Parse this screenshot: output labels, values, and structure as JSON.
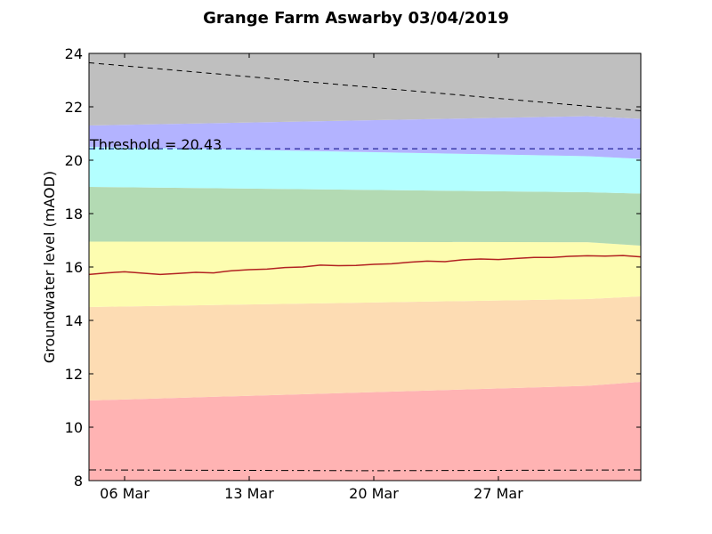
{
  "chart_data": {
    "type": "area",
    "title": "Grange Farm Aswarby 03/04/2019",
    "xlabel": "",
    "ylabel": "Groundwater level (mAOD)",
    "ylim": [
      8,
      24
    ],
    "xlim": [
      "2019-03-04",
      "2019-04-04"
    ],
    "yticks": [
      8,
      10,
      12,
      14,
      16,
      18,
      20,
      22,
      24
    ],
    "xticks": [
      {
        "date": "2019-03-06",
        "label": "06 Mar"
      },
      {
        "date": "2019-03-13",
        "label": "13 Mar"
      },
      {
        "date": "2019-03-20",
        "label": "20 Mar"
      },
      {
        "date": "2019-03-27",
        "label": "27 Mar"
      }
    ],
    "grid": false,
    "bands": [
      {
        "color": "#ffb3b3",
        "x": [
          "2019-03-04",
          "2019-04-01",
          "2019-04-04"
        ],
        "lower": [
          8,
          8,
          8
        ],
        "upper": [
          11.0,
          11.55,
          11.7
        ]
      },
      {
        "color": "#fddcb3",
        "x": [
          "2019-03-04",
          "2019-04-01",
          "2019-04-04"
        ],
        "lower": [
          11.0,
          11.55,
          11.7
        ],
        "upper": [
          14.5,
          14.8,
          14.9
        ]
      },
      {
        "color": "#fdfdb0",
        "x": [
          "2019-03-04",
          "2019-04-01",
          "2019-04-04"
        ],
        "lower": [
          14.5,
          14.8,
          14.9
        ],
        "upper": [
          16.95,
          16.93,
          16.8
        ]
      },
      {
        "color": "#b3dab3",
        "x": [
          "2019-03-04",
          "2019-04-01",
          "2019-04-04"
        ],
        "lower": [
          16.95,
          16.93,
          16.8
        ],
        "upper": [
          19.0,
          18.8,
          18.75
        ]
      },
      {
        "color": "#b3ffff",
        "x": [
          "2019-03-04",
          "2019-04-01",
          "2019-04-04"
        ],
        "lower": [
          19.0,
          18.8,
          18.75
        ],
        "upper": [
          20.5,
          20.15,
          20.05
        ]
      },
      {
        "color": "#b3b3ff",
        "x": [
          "2019-03-04",
          "2019-04-01",
          "2019-04-04"
        ],
        "lower": [
          20.5,
          20.15,
          20.05
        ],
        "upper": [
          21.3,
          21.65,
          21.55
        ]
      },
      {
        "color": "#bfbfbf",
        "x": [
          "2019-03-04",
          "2019-04-01",
          "2019-04-04"
        ],
        "lower": [
          21.3,
          21.65,
          21.55
        ],
        "upper": [
          24,
          24,
          24
        ]
      }
    ],
    "series": [
      {
        "color": "#b22222",
        "x": [
          "2019-03-04",
          "2019-03-05",
          "2019-03-06",
          "2019-03-07",
          "2019-03-08",
          "2019-03-09",
          "2019-03-10",
          "2019-03-11",
          "2019-03-12",
          "2019-03-13",
          "2019-03-14",
          "2019-03-15",
          "2019-03-16",
          "2019-03-17",
          "2019-03-18",
          "2019-03-19",
          "2019-03-20",
          "2019-03-21",
          "2019-03-22",
          "2019-03-23",
          "2019-03-24",
          "2019-03-25",
          "2019-03-26",
          "2019-03-27",
          "2019-03-28",
          "2019-03-29",
          "2019-03-30",
          "2019-03-31",
          "2019-04-01",
          "2019-04-02",
          "2019-04-03",
          "2019-04-04"
        ],
        "values": [
          15.72,
          15.78,
          15.82,
          15.77,
          15.72,
          15.76,
          15.8,
          15.78,
          15.86,
          15.9,
          15.92,
          15.98,
          16.0,
          16.07,
          16.05,
          16.06,
          16.1,
          16.12,
          16.18,
          16.22,
          16.2,
          16.27,
          16.3,
          16.28,
          16.32,
          16.36,
          16.36,
          16.4,
          16.42,
          16.41,
          16.43,
          16.38
        ]
      },
      {
        "style": "dashed",
        "color": "#000000",
        "x": [
          "2019-03-04",
          "2019-04-04"
        ],
        "values": [
          23.65,
          21.85
        ]
      },
      {
        "style": "dashed",
        "color": "#000080",
        "x": [
          "2019-03-04",
          "2019-04-04"
        ],
        "values": [
          20.43,
          20.43
        ]
      },
      {
        "style": "dashdot",
        "color": "#000000",
        "x": [
          "2019-03-04",
          "2019-03-20",
          "2019-04-04"
        ],
        "values": [
          8.4,
          8.37,
          8.4
        ]
      }
    ],
    "annotations": [
      {
        "text": "Threshold = 20.43",
        "x": "2019-03-04",
        "y": 20.43
      }
    ]
  }
}
